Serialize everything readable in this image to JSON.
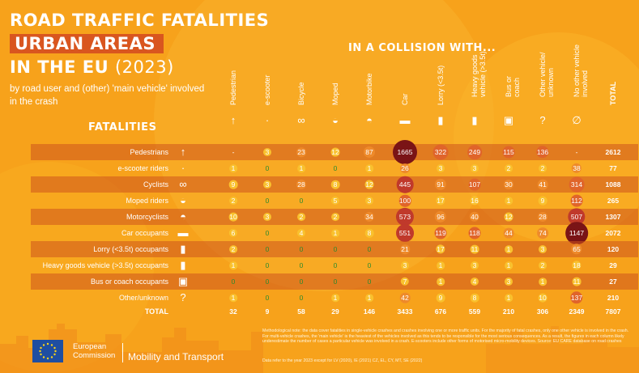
{
  "header": {
    "title_line1": "ROAD TRAFFIC FATALITIES",
    "title_line2": "URBAN AREAS",
    "title_line3": "IN THE EU",
    "year": "(2023)",
    "subtitle": "by road user and (other) 'main vehicle' involved in the crash",
    "collision_heading": "IN A COLLISION WITH...",
    "fatalities_heading": "FATALITIES"
  },
  "colors": {
    "background": "#f7a21b",
    "row_band": "#ce541e",
    "title_highlight": "#d9561f",
    "bubble_small": "#f9c12e",
    "bubble_large": "#7a1416",
    "green_text": "#2e8b2e"
  },
  "chart_data": {
    "type": "table",
    "title": "ROAD TRAFFIC FATALITIES URBAN AREAS IN THE EU (2023)",
    "columns": [
      {
        "label": "Pedestrian",
        "icon": "pedestrian-icon"
      },
      {
        "label": "e-scooter",
        "icon": "e-scooter-icon"
      },
      {
        "label": "Bicycle",
        "icon": "bicycle-icon"
      },
      {
        "label": "Moped",
        "icon": "moped-icon"
      },
      {
        "label": "Motorbike",
        "icon": "motorbike-icon"
      },
      {
        "label": "Car",
        "icon": "car-icon"
      },
      {
        "label": "Lorry (<3.5t)",
        "icon": "lorry-icon"
      },
      {
        "label": "Heavy goods\nvehicle (>3.5t)",
        "icon": "heavy-goods-vehicle-icon"
      },
      {
        "label": "Bus or\ncoach",
        "icon": "bus-icon"
      },
      {
        "label": "Other vehicle/\nunknown",
        "icon": "question-icon"
      },
      {
        "label": "No other vehicle\ninvolved",
        "icon": "empty-set-icon"
      },
      {
        "label": "TOTAL",
        "icon": ""
      }
    ],
    "rows": [
      {
        "label": "Pedestrians",
        "icon": "pedestrian-icon",
        "values": [
          "-",
          "3",
          "23",
          "12",
          "87",
          "1665",
          "322",
          "249",
          "115",
          "136",
          "-",
          "2612"
        ]
      },
      {
        "label": "e-scooter riders",
        "icon": "e-scooter-icon",
        "values": [
          "1",
          "0",
          "1",
          "0",
          "1",
          "26",
          "3",
          "3",
          "2",
          "2",
          "38",
          "77"
        ]
      },
      {
        "label": "Cyclists",
        "icon": "bicycle-icon",
        "values": [
          "9",
          "3",
          "28",
          "8",
          "12",
          "445",
          "91",
          "107",
          "30",
          "41",
          "314",
          "1088"
        ]
      },
      {
        "label": "Moped riders",
        "icon": "moped-icon",
        "values": [
          "2",
          "0",
          "0",
          "5",
          "3",
          "100",
          "17",
          "16",
          "1",
          "9",
          "112",
          "265"
        ]
      },
      {
        "label": "Motorcyclists",
        "icon": "motorbike-icon",
        "values": [
          "10",
          "3",
          "2",
          "2",
          "34",
          "573",
          "96",
          "40",
          "12",
          "28",
          "507",
          "1307"
        ]
      },
      {
        "label": "Car occupants",
        "icon": "car-icon",
        "values": [
          "6",
          "0",
          "4",
          "1",
          "8",
          "551",
          "119",
          "118",
          "44",
          "74",
          "1147",
          "2072"
        ]
      },
      {
        "label": "Lorry (<3.5t) occupants",
        "icon": "lorry-icon",
        "values": [
          "2",
          "0",
          "0",
          "0",
          "0",
          "21",
          "17",
          "11",
          "1",
          "3",
          "65",
          "120"
        ]
      },
      {
        "label": "Heavy goods vehicle (>3.5t) occupants",
        "icon": "heavy-goods-vehicle-icon",
        "values": [
          "1",
          "0",
          "0",
          "0",
          "0",
          "3",
          "1",
          "3",
          "1",
          "2",
          "18",
          "29"
        ]
      },
      {
        "label": "Bus or coach occupants",
        "icon": "bus-icon",
        "values": [
          "0",
          "0",
          "0",
          "0",
          "0",
          "7",
          "1",
          "4",
          "3",
          "1",
          "11",
          "27"
        ]
      },
      {
        "label": "Other/unknown",
        "icon": "question-icon",
        "values": [
          "1",
          "0",
          "0",
          "1",
          "1",
          "42",
          "9",
          "8",
          "1",
          "10",
          "137",
          "210"
        ]
      }
    ],
    "totals": {
      "label": "TOTAL",
      "values": [
        "32",
        "9",
        "58",
        "29",
        "146",
        "3433",
        "676",
        "559",
        "210",
        "306",
        "2349",
        "7807"
      ]
    }
  },
  "footer": {
    "logo_line1": "European",
    "logo_line2": "Commission",
    "dg": "Mobility and Transport",
    "note": "Methodological note: the data cover fatalities in single-vehicle crashes and crashes involving one or more traffic units. For the majority of fatal crashes, only one other vehicle is involved in the crash. For multi-vehicle crashes, the 'main vehicle' is the heaviest of the vehicles involved as this tends to be responsible for the most serious consequences. As a result, the figures in each column likely underestimate the number of cases a particular vehicle was involved in a crash. E-scooters include other forms of motorised micro-mobility devices. Source: EU CARE database on road crashes",
    "note2": "Data refer to the year 2023 except for LV (2020), IE (2021) CZ, EL, CY, MT, SE (2022)"
  }
}
